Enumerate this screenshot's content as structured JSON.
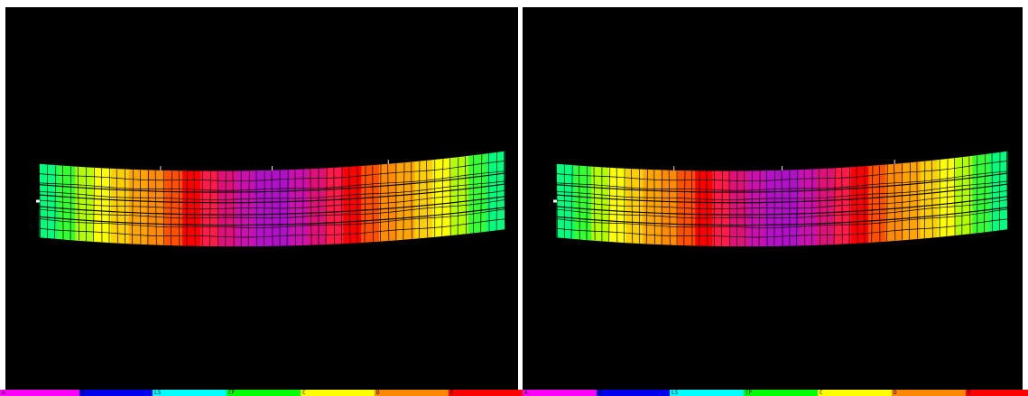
{
  "caption": {
    "left": "",
    "right": ""
  },
  "views": [
    {
      "id": "left",
      "bands": [
        "#00ff7f",
        "#33ff33",
        "#b3ff00",
        "#ffff00",
        "#ffd000",
        "#ffa500",
        "#ff8c00",
        "#ff5000",
        "#ff0000",
        "#ff1a4a",
        "#e0107a",
        "#cc10b0",
        "#b510c8",
        "#b010c8",
        "#cc10b0",
        "#e0107a",
        "#ff1a4a",
        "#ff0000",
        "#ff5000",
        "#ff8c00",
        "#ffa500",
        "#ffd000",
        "#ffff00",
        "#b3ff00",
        "#33ff33",
        "#00ff7f"
      ]
    },
    {
      "id": "right",
      "bands": [
        "#00ff7f",
        "#33ff33",
        "#b3ff00",
        "#ffff00",
        "#ffd000",
        "#ffa500",
        "#ff8c00",
        "#ff5000",
        "#ff0000",
        "#ff1a4a",
        "#e0107a",
        "#cc10b0",
        "#b510c8",
        "#b010c8",
        "#cc10b0",
        "#e0107a",
        "#ff1a4a",
        "#ff0000",
        "#ff5000",
        "#ff8c00",
        "#ffa500",
        "#ffd000",
        "#ffff00",
        "#b3ff00",
        "#33ff33",
        "#00ff7f"
      ]
    }
  ],
  "legend": [
    {
      "label": "A",
      "color": "#ff00ff"
    },
    {
      "label": "B",
      "color": "#0000ee"
    },
    {
      "label": "LS",
      "color": "#00ffff"
    },
    {
      "label": "CP",
      "color": "#00ff00"
    },
    {
      "label": "C",
      "color": "#ffff00"
    },
    {
      "label": "D",
      "color": "#ff8800"
    },
    {
      "label": "E",
      "color": "#ff0000"
    },
    {
      "label": "A",
      "color": "#ff00ff"
    },
    {
      "label": "B",
      "color": "#0000ee"
    },
    {
      "label": "LS",
      "color": "#00ffff"
    },
    {
      "label": "CP",
      "color": "#00ff00"
    },
    {
      "label": "C",
      "color": "#ffff00"
    },
    {
      "label": "D",
      "color": "#ff8800"
    },
    {
      "label": "E",
      "color": "#ff0000"
    }
  ]
}
